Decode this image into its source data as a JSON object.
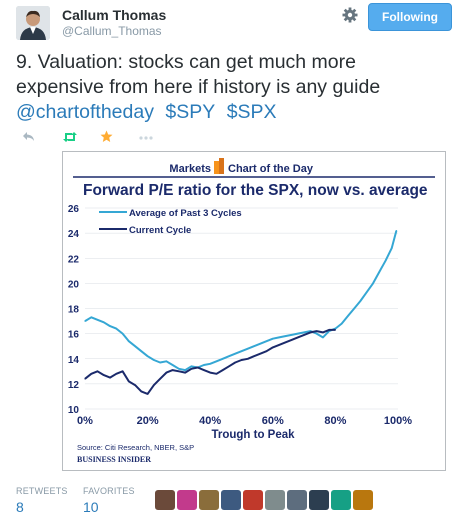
{
  "user": {
    "name": "Callum Thomas",
    "handle": "@Callum_Thomas"
  },
  "follow_button": {
    "label": "Following"
  },
  "tweet": {
    "line1": "9. Valuation: stocks can get much more",
    "line2": "expensive from here if history is any guide",
    "links": [
      "@chartoftheday",
      "$SPY",
      "$SPX"
    ]
  },
  "actions": [
    "reply-icon",
    "retweet-icon",
    "favorite-icon",
    "more-icon"
  ],
  "chart_header": {
    "left": "Markets",
    "right": "Chart of the Day"
  },
  "colors": {
    "follow": "#55acee",
    "link": "#2b7bb9",
    "average_series": "#35a7d4",
    "current_series": "#1b2a6b",
    "title_navy": "#1b2a6b",
    "header_orange": "#f7941d"
  },
  "chart_data": {
    "type": "line",
    "title": "Forward P/E ratio for the SPX, now vs. average",
    "xlabel": "Trough to Peak",
    "ylabel": "",
    "x_ticks": [
      "0%",
      "20%",
      "40%",
      "60%",
      "80%",
      "100%"
    ],
    "y_ticks": [
      "10",
      "12",
      "14",
      "16",
      "18",
      "20",
      "22",
      "24",
      "26"
    ],
    "xlim": [
      0,
      100
    ],
    "ylim": [
      10,
      26
    ],
    "legend_position": "top-left",
    "series": [
      {
        "name": "Average of Past 3 Cycles",
        "x": [
          0,
          2,
          4,
          6,
          8,
          10,
          12,
          14,
          16,
          18,
          20,
          22,
          24,
          26,
          28,
          30,
          32,
          34,
          36,
          38,
          40,
          42,
          44,
          46,
          48,
          50,
          52,
          54,
          56,
          58,
          60,
          62,
          64,
          66,
          68,
          70,
          72,
          74,
          76,
          78,
          80,
          82,
          84,
          86,
          88,
          90,
          92,
          94,
          96,
          98,
          99.5
        ],
        "y": [
          17.0,
          17.3,
          17.1,
          16.9,
          16.6,
          16.4,
          16.0,
          15.4,
          15.0,
          14.6,
          14.2,
          13.9,
          13.7,
          13.8,
          13.5,
          13.2,
          13.1,
          13.4,
          13.3,
          13.5,
          13.6,
          13.8,
          14.0,
          14.2,
          14.4,
          14.6,
          14.8,
          15.0,
          15.2,
          15.4,
          15.6,
          15.7,
          15.8,
          15.9,
          16.0,
          16.1,
          16.2,
          16.0,
          15.7,
          16.2,
          16.4,
          16.8,
          17.4,
          18.0,
          18.6,
          19.3,
          20.0,
          20.9,
          21.8,
          22.8,
          24.2
        ]
      },
      {
        "name": "Current Cycle",
        "x": [
          0,
          2,
          4,
          6,
          8,
          10,
          12,
          14,
          16,
          18,
          20,
          22,
          24,
          26,
          28,
          30,
          32,
          34,
          36,
          38,
          40,
          42,
          44,
          46,
          48,
          50,
          52,
          54,
          56,
          58,
          60,
          62,
          64,
          66,
          68,
          70,
          72,
          74,
          76,
          78,
          80
        ],
        "y": [
          12.4,
          12.8,
          13.0,
          12.7,
          12.5,
          12.8,
          13.0,
          12.2,
          11.9,
          11.4,
          11.2,
          11.9,
          12.4,
          12.9,
          13.1,
          13.0,
          12.9,
          13.2,
          13.3,
          13.1,
          12.9,
          12.8,
          13.1,
          13.4,
          13.7,
          13.9,
          14.0,
          14.2,
          14.4,
          14.6,
          14.9,
          15.1,
          15.3,
          15.5,
          15.7,
          15.9,
          16.1,
          16.2,
          16.1,
          16.3,
          16.3
        ]
      }
    ]
  },
  "chart_footer": {
    "source": "Source: Citi Research, NBER, S&P",
    "brand": "BUSINESS INSIDER"
  },
  "stats": {
    "retweets_label": "RETWEETS",
    "retweets_value": "8",
    "favorites_label": "FAVORITES",
    "favorites_value": "10"
  },
  "favoriters": [
    "#6b4a3a",
    "#c23a8c",
    "#8a6d3b",
    "#3d5a80",
    "#c0392b",
    "#7f8c8d",
    "#5d6d7e",
    "#2c3e50",
    "#16a085",
    "#b9770e"
  ]
}
